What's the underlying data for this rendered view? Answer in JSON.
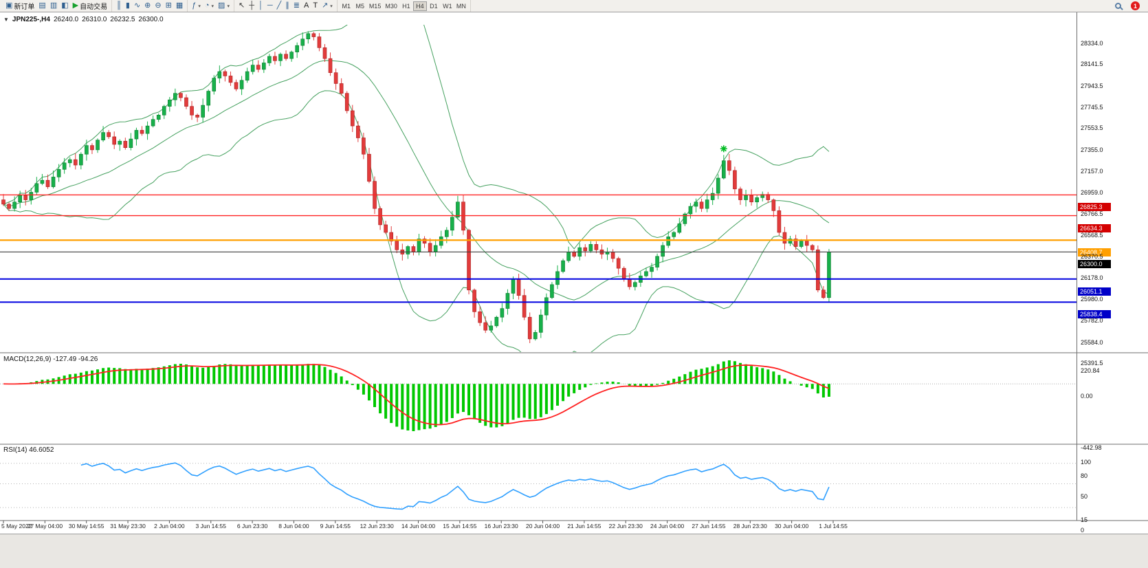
{
  "toolbar": {
    "groups": [
      {
        "name": "trade",
        "buttons": [
          {
            "id": "new-order",
            "glyph": "▣",
            "label": "新订单"
          },
          {
            "id": "market-watch",
            "glyph": "▤"
          },
          {
            "id": "data-window",
            "glyph": "▥"
          },
          {
            "id": "navigator",
            "glyph": "◧"
          },
          {
            "id": "autotrading",
            "glyph": "▶",
            "label": "自动交易",
            "color": "#18a12e"
          }
        ]
      },
      {
        "name": "chart-type",
        "buttons": [
          {
            "id": "bar-chart",
            "glyph": "║"
          },
          {
            "id": "candlestick-chart",
            "glyph": "▮"
          },
          {
            "id": "line-chart",
            "glyph": "∿"
          },
          {
            "id": "zoom-in",
            "glyph": "⊕"
          },
          {
            "id": "zoom-out",
            "glyph": "⊖"
          },
          {
            "id": "tile-windows",
            "glyph": "⊞"
          },
          {
            "id": "cascade-windows",
            "glyph": "▦"
          }
        ]
      },
      {
        "name": "objects",
        "buttons": [
          {
            "id": "indicators",
            "glyph": "ƒ",
            "caret": true
          },
          {
            "id": "periods",
            "glyph": "◔",
            "caret": true
          },
          {
            "id": "templates",
            "glyph": "▨",
            "caret": true
          }
        ]
      },
      {
        "name": "drawing",
        "buttons": [
          {
            "id": "cursor",
            "glyph": "↖",
            "color": "#333333"
          },
          {
            "id": "crosshair",
            "glyph": "┼",
            "color": "#333333"
          },
          {
            "id": "vertical-line",
            "glyph": "│"
          },
          {
            "id": "horizontal-line",
            "glyph": "─"
          },
          {
            "id": "trend-line",
            "glyph": "╱"
          },
          {
            "id": "channel",
            "glyph": "∥"
          },
          {
            "id": "fibonacci",
            "glyph": "≣"
          },
          {
            "id": "text",
            "glyph": "A",
            "color": "#222222"
          },
          {
            "id": "text-label",
            "glyph": "T",
            "color": "#222222"
          },
          {
            "id": "arrows",
            "glyph": "↗",
            "caret": true
          }
        ]
      }
    ],
    "timeframes": [
      "M1",
      "M5",
      "M15",
      "M30",
      "H1",
      "H4",
      "D1",
      "W1",
      "MN"
    ],
    "active_timeframe": "H4",
    "notification_count": "1"
  },
  "chart_header": {
    "symbol": "JPN225-,H4",
    "open": "26240.0",
    "high": "26310.0",
    "low": "26232.5",
    "close": "26300.0"
  },
  "chart_data": {
    "type": "candlestick",
    "title": "JPN225-,H4",
    "symbol": "JPN225-",
    "timeframe": "H4",
    "ohlc_display": {
      "open": 26240.0,
      "high": 26310.0,
      "low": 26232.5,
      "close": 26300.0
    },
    "price_axis": {
      "min": 25391.5,
      "max": 28334.0,
      "ticks": [
        28334.0,
        28141.5,
        27943.5,
        27745.5,
        27553.5,
        27355.0,
        27157.0,
        26959.0,
        26766.5,
        26568.5,
        26370.5,
        26178.0,
        25980.0,
        25782.0,
        25584.0,
        25391.5
      ]
    },
    "closes": [
      26740,
      26700,
      26760,
      26820,
      26780,
      26850,
      26930,
      26960,
      26900,
      26990,
      27060,
      27120,
      27150,
      27100,
      27200,
      27280,
      27240,
      27330,
      27400,
      27360,
      27290,
      27320,
      27260,
      27340,
      27420,
      27390,
      27460,
      27520,
      27560,
      27640,
      27700,
      27760,
      27720,
      27640,
      27560,
      27540,
      27650,
      27780,
      27900,
      27960,
      27920,
      27860,
      27800,
      27880,
      27960,
      28020,
      27980,
      28040,
      28100,
      28060,
      28120,
      28080,
      28140,
      28200,
      28260,
      28310,
      28280,
      28180,
      28080,
      27950,
      27850,
      27760,
      27600,
      27460,
      27350,
      27200,
      26950,
      26700,
      26550,
      26480,
      26400,
      26320,
      26280,
      26350,
      26300,
      26420,
      26380,
      26300,
      26360,
      26440,
      26500,
      26620,
      26760,
      26500,
      25950,
      25750,
      25650,
      25580,
      25620,
      25700,
      25780,
      25920,
      26050,
      25900,
      25700,
      25500,
      25560,
      25720,
      25880,
      26000,
      26120,
      26220,
      26300,
      26260,
      26340,
      26310,
      26370,
      26320,
      26280,
      26300,
      26240,
      26150,
      26050,
      25980,
      26020,
      26080,
      26120,
      26160,
      26260,
      26360,
      26440,
      26480,
      26560,
      26650,
      26720,
      26760,
      26700,
      26780,
      26840,
      26980,
      27140,
      27050,
      26880,
      26780,
      26820,
      26760,
      26800,
      26830,
      26780,
      26680,
      26480,
      26380,
      26420,
      26350,
      26400,
      26360,
      26320,
      25950,
      25880,
      26300
    ],
    "overlays": {
      "bollinger": {
        "period": 20,
        "deviation": 2,
        "color": "#44a05e"
      }
    },
    "horizontal_lines": [
      {
        "price": 26825.3,
        "color": "#ff2222",
        "width": 1.4,
        "label": "26825.3",
        "label_bg": "#d40000"
      },
      {
        "price": 26634.3,
        "color": "#ff2222",
        "width": 1.4,
        "label": "26634.3",
        "label_bg": "#d40000"
      },
      {
        "price": 26408.7,
        "color": "#ff9f00",
        "width": 2.2,
        "label": "26408.7",
        "label_bg": "#ff9f00"
      },
      {
        "price": 26300.0,
        "color": "#3c3c3c",
        "width": 1.2,
        "label": "26300.0",
        "label_bg": "#000000"
      },
      {
        "price": 26051.1,
        "color": "#0000e0",
        "width": 2.0,
        "label": "26051.1",
        "label_bg": "#0000c8"
      },
      {
        "price": 25838.4,
        "color": "#0000e0",
        "width": 2.0,
        "label": "25838.4",
        "label_bg": "#0000c8"
      }
    ],
    "marker": {
      "type": "star",
      "index": 130,
      "price": 27250,
      "color": "#00bb22"
    },
    "time_labels": [
      "5 May 2022",
      "27 May 04:00",
      "30 May 14:55",
      "31 May 23:30",
      "2 Jun 04:00",
      "3 Jun 14:55",
      "6 Jun 23:30",
      "8 Jun 04:00",
      "9 Jun 14:55",
      "12 Jun 23:30",
      "14 Jun 04:00",
      "15 Jun 14:55",
      "16 Jun 23:30",
      "20 Jun 04:00",
      "21 Jun 14:55",
      "22 Jun 23:30",
      "24 Jun 04:00",
      "27 Jun 14:55",
      "28 Jun 23:30",
      "30 Jun 04:00",
      "1 Jul 14:55"
    ],
    "indicators": [
      {
        "name": "MACD",
        "display": "MACD(12,26,9) -127.49 -94.26",
        "params": [
          12,
          26,
          9
        ],
        "main_value": -127.49,
        "signal_value": -94.26,
        "axis_ticks": [
          220.84,
          0,
          -442.98
        ],
        "axis_labels": [
          "220.84",
          "0.00",
          "-442.98"
        ],
        "histogram_color": "#00c800",
        "signal_color": "#ff2020"
      },
      {
        "name": "RSI",
        "display": "RSI(14) 46.6052",
        "period": 14,
        "value": 46.6052,
        "axis_ticks": [
          100,
          80,
          50,
          15,
          0
        ],
        "axis_labels": [
          "100",
          "80",
          "50",
          "15",
          "0"
        ],
        "levels": [
          80,
          50,
          15
        ],
        "line_color": "#2e9fff"
      }
    ],
    "colors": {
      "bull": "#17b04a",
      "bull_stroke": "#0e7c30",
      "bear": "#e23b3b",
      "bear_stroke": "#a82020",
      "background": "#ffffff",
      "separator": "#6e6e6e"
    }
  }
}
